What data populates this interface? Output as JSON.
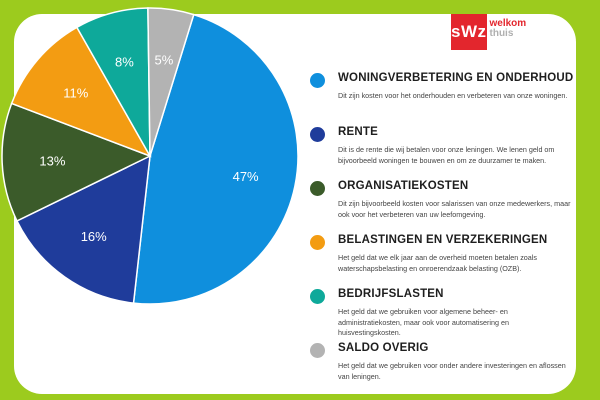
{
  "logo": {
    "box_text": "sWz",
    "line1": "welkom",
    "line2": "thuis"
  },
  "colors": {
    "background": "#9ccb1e",
    "woningverbetering": "#0f8fdd",
    "rente": "#1f3c9b",
    "organisatie": "#3b5b2a",
    "belastingen": "#f39c12",
    "bedrijfslasten": "#0ea99a",
    "saldo": "#b3b3b3"
  },
  "chart_data": {
    "type": "pie",
    "categories": [
      "WONINGVERBETERING EN ONDERHOUD",
      "RENTE",
      "ORGANISATIEKOSTEN",
      "BELASTINGEN EN VERZEKERINGEN",
      "BEDRIJFSLASTEN",
      "SALDO OVERIG"
    ],
    "values": [
      47,
      16,
      13,
      11,
      8,
      5
    ],
    "labels": [
      "47%",
      "16%",
      "13%",
      "11%",
      "8%",
      "5%"
    ],
    "colors": [
      "#0f8fdd",
      "#1f3c9b",
      "#3b5b2a",
      "#f39c12",
      "#0ea99a",
      "#b3b3b3"
    ],
    "legend": "right"
  },
  "legend": [
    {
      "title": "WONINGVERBETERING EN ONDERHOUD",
      "desc": "Dit zijn kosten voor het onderhouden en verbeteren van onze woningen.",
      "color": "#0f8fdd"
    },
    {
      "title": "RENTE",
      "desc": "Dit is de rente die wij betalen voor onze leningen. We lenen geld om bijvoorbeeld woningen te bouwen en om ze duurzamer te maken.",
      "color": "#1f3c9b"
    },
    {
      "title": "ORGANISATIEKOSTEN",
      "desc": "Dit zijn bijvoorbeeld kosten voor salarissen van onze medewerkers, maar ook voor het verbeteren van uw leefomgeving.",
      "color": "#3b5b2a"
    },
    {
      "title": "BELASTINGEN EN VERZEKERINGEN",
      "desc": "Het geld dat we elk jaar aan de overheid moeten betalen zoals waterschapsbelasting en onroerendzaak belasting (OZB).",
      "color": "#f39c12"
    },
    {
      "title": "BEDRIJFSLASTEN",
      "desc": "Het geld dat we gebruiken voor algemene beheer- en administratiekosten, maar ook voor automatisering en huisvestingskosten.",
      "color": "#0ea99a"
    },
    {
      "title": "SALDO OVERIG",
      "desc": "Het geld dat we gebruiken voor onder andere investeringen en aflossen van leningen.",
      "color": "#b3b3b3"
    }
  ]
}
